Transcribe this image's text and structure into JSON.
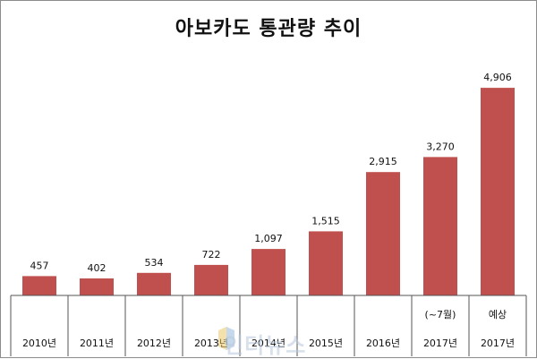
{
  "chart_data": {
    "type": "bar",
    "title": "아보카도 통관량 추이",
    "categories": [
      [
        "",
        "2010년"
      ],
      [
        "",
        "2011년"
      ],
      [
        "",
        "2012년"
      ],
      [
        "",
        "2013년"
      ],
      [
        "",
        "2014년"
      ],
      [
        "",
        "2015년"
      ],
      [
        "",
        "2016년"
      ],
      [
        "(~7월)",
        "2017년"
      ],
      [
        "예상",
        "2017년"
      ]
    ],
    "values": [
      457,
      402,
      534,
      722,
      1097,
      1515,
      2915,
      3270,
      4906
    ],
    "value_labels": [
      "457",
      "402",
      "534",
      "722",
      "1,097",
      "1,515",
      "2,915",
      "3,270",
      "4,906"
    ],
    "ylim": [
      0,
      5500
    ],
    "bar_color": "#c0504d",
    "grid": false,
    "legend": "none",
    "xlabel": "",
    "ylabel": ""
  },
  "watermark": "인터뉴스"
}
